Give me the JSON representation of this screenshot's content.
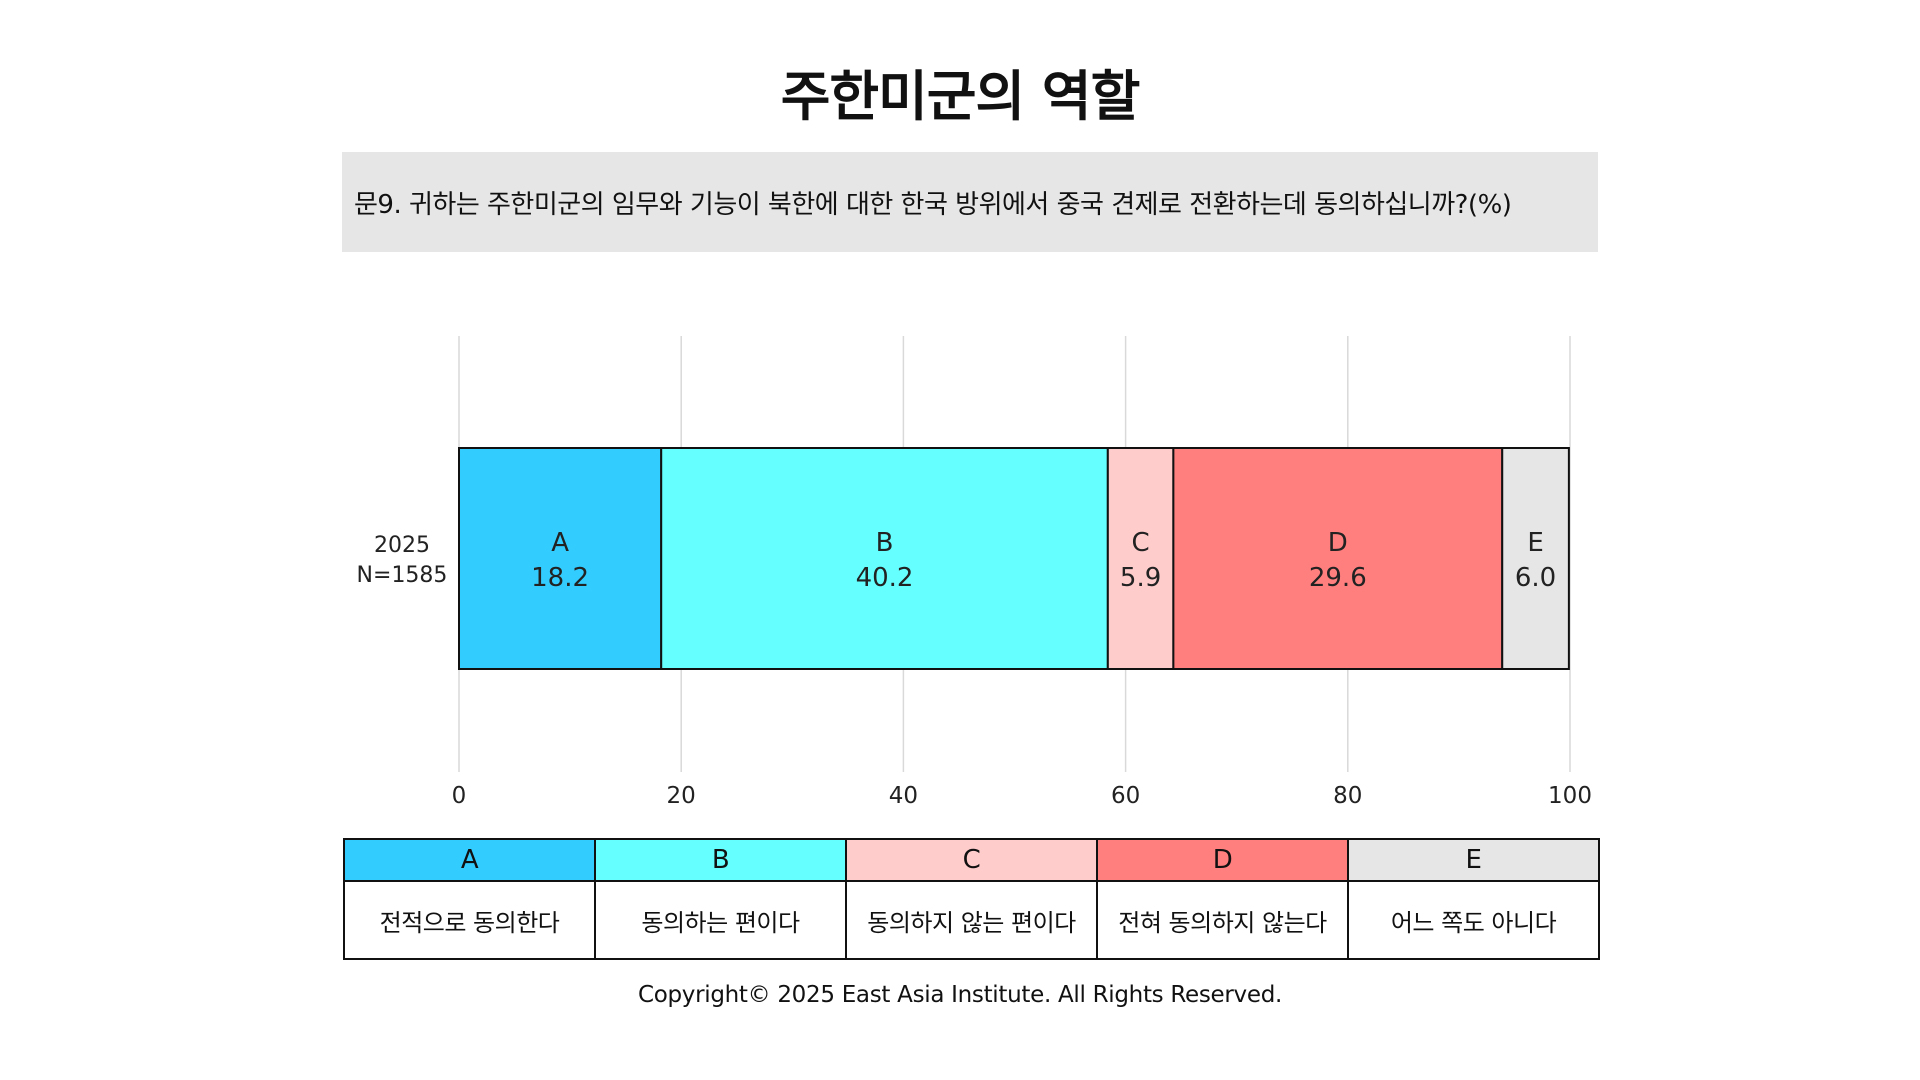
{
  "title": "주한미군의 역할",
  "question": "문9. 귀하는 주한미군의 임무와 기능이 북한에 대한 한국 방위에서 중국 견제로 전환하는데  동의하십니까?(%)",
  "chart_data": {
    "type": "bar",
    "orientation": "horizontal",
    "stacked": true,
    "categories": [
      "2025\nN=1585"
    ],
    "category_lines": [
      "2025",
      "N=1585"
    ],
    "series": [
      {
        "name": "A",
        "values": [
          18.2
        ],
        "color": "#33ccff"
      },
      {
        "name": "B",
        "values": [
          40.2
        ],
        "color": "#66ffff"
      },
      {
        "name": "C",
        "values": [
          5.9
        ],
        "color": "#ffcccc"
      },
      {
        "name": "D",
        "values": [
          29.6
        ],
        "color": "#ff7f7f"
      },
      {
        "name": "E",
        "values": [
          6.0
        ],
        "color": "#e6e6e6"
      }
    ],
    "xlim": [
      0,
      100
    ],
    "xticks": [
      0,
      20,
      40,
      60,
      80,
      100
    ],
    "grid": true
  },
  "legend": [
    {
      "key": "A",
      "label": "전적으로 동의한다",
      "color": "#33ccff"
    },
    {
      "key": "B",
      "label": "동의하는 편이다",
      "color": "#66ffff"
    },
    {
      "key": "C",
      "label": "동의하지 않는 편이다",
      "color": "#ffcccc"
    },
    {
      "key": "D",
      "label": "전혀 동의하지 않는다",
      "color": "#ff7f7f"
    },
    {
      "key": "E",
      "label": "어느 쪽도 아니다",
      "color": "#e6e6e6"
    }
  ],
  "copyright": "Copyright© 2025 East Asia Institute. All Rights Reserved."
}
